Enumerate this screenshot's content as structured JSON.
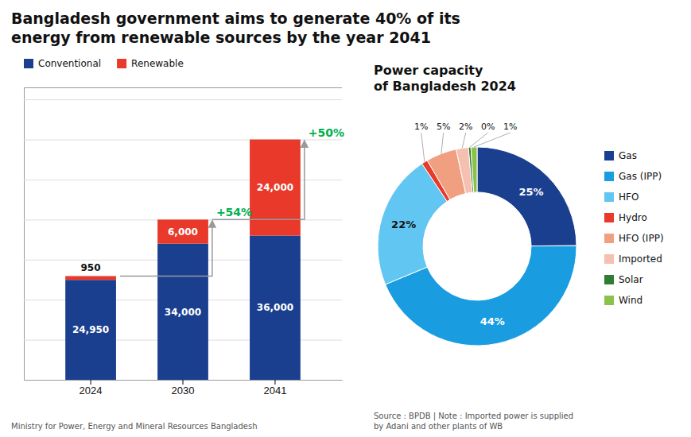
{
  "chart_data": [
    {
      "type": "bar",
      "stacked": true,
      "title": "Bangladesh government aims to generate 40% of its\nenergy from renewable sources by the year 2041",
      "categories": [
        "2024",
        "2030",
        "2041"
      ],
      "series": [
        {
          "name": "Conventional",
          "color": "#1b3f8f",
          "values": [
            24950,
            34000,
            36000
          ],
          "value_labels": [
            "24,950",
            "34,000",
            "36,000"
          ]
        },
        {
          "name": "Renewable",
          "color": "#e8392a",
          "values": [
            950,
            6000,
            24000
          ],
          "value_labels": [
            "950",
            "6,000",
            "24,000"
          ]
        }
      ],
      "ylim": [
        0,
        73000
      ],
      "yticks": [
        0,
        10000,
        20000,
        30000,
        40000,
        50000,
        60000,
        70000
      ],
      "grid": true,
      "tick_labels": "x",
      "legend": "top-left",
      "data_labels": true,
      "annotations": [
        {
          "text": "+54%",
          "category": "2030",
          "color": "#00b050"
        },
        {
          "text": "+50%",
          "category": "2041",
          "color": "#00b050"
        }
      ],
      "source": "Ministry for Power, Energy and Mineral Resources Bangladesh"
    },
    {
      "type": "pie",
      "title": "Power capacity\nof Bangladesh 2024",
      "categories": [
        "Gas",
        "Gas (IPP)",
        "HFO",
        "Hydro",
        "HFO (IPP)",
        "Imported",
        "Solar",
        "Wind"
      ],
      "values": [
        25,
        44,
        22,
        1,
        5,
        2,
        0.4,
        1
      ],
      "value_labels": [
        "25%",
        "44%",
        "22%",
        "1%",
        "5%",
        "2%",
        "0%",
        "1%"
      ],
      "colors": [
        "#1b3f8f",
        "#1a9de0",
        "#62c6f2",
        "#e8392a",
        "#f0a080",
        "#f5c0b0",
        "#2e7d32",
        "#8bc34a"
      ],
      "data_labels": true,
      "legend": "right",
      "source": "Source : BPDB | Note : Imported power is supplied\nby Adani and other plants of WB"
    }
  ]
}
